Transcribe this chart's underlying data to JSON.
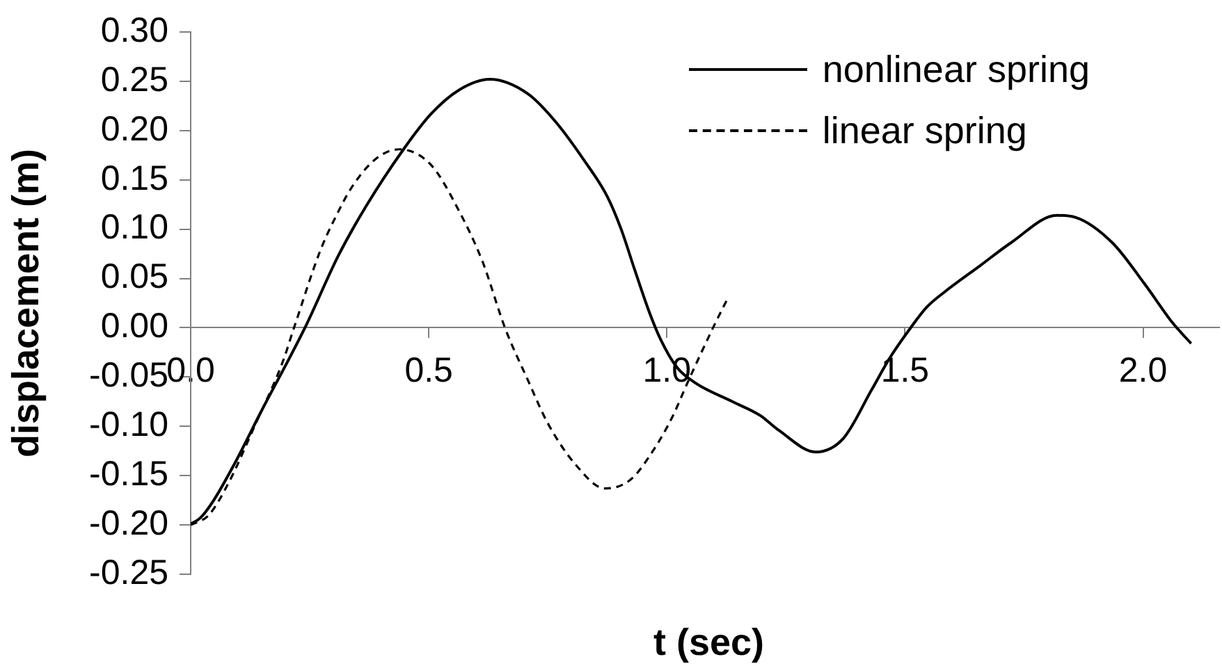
{
  "chart_data": {
    "type": "line",
    "xlabel": "t (sec)",
    "ylabel": "displacement (m)",
    "xlim": [
      0,
      2.16
    ],
    "xticks": [
      {
        "value": 0,
        "label": "0.0"
      },
      0.5,
      {
        "value": 1,
        "label": "1.0"
      },
      1.5,
      {
        "value": 2,
        "label": "2.0"
      }
    ],
    "ylim": [
      -0.25,
      0.3
    ],
    "yticks": [
      -0.25,
      {
        "value": -0.2,
        "label": "-0.20"
      },
      -0.15,
      {
        "value": -0.1,
        "label": "-0.10"
      },
      -0.05,
      {
        "value": 0,
        "label": "0.00"
      },
      0.05,
      {
        "value": 0.1,
        "label": "0.10"
      },
      0.15,
      {
        "value": 0.2,
        "label": "0.20"
      },
      0.25,
      {
        "value": 0.3,
        "label": "0.30"
      }
    ],
    "legend": "top right",
    "series": [
      {
        "name": "nonlinear spring",
        "color": "#000000",
        "line_style": "solid",
        "x": [
          0,
          0.02,
          0.047,
          0.092,
          0.148,
          0.24,
          0.31,
          0.368,
          0.447,
          0.505,
          0.563,
          0.628,
          0.709,
          0.768,
          0.826,
          0.875,
          0.904,
          0.933,
          0.963,
          0.987,
          1.021,
          1.06,
          1.138,
          1.196,
          1.235,
          1.313,
          1.371,
          1.43,
          1.469,
          1.512,
          1.546,
          1.585,
          1.658,
          1.722,
          1.819,
          1.858,
          1.936,
          2.004,
          2.062,
          2.101
        ],
        "values": [
          -0.199,
          -0.193,
          -0.176,
          -0.138,
          -0.085,
          0,
          0.073,
          0.123,
          0.181,
          0.217,
          0.241,
          0.252,
          0.237,
          0.208,
          0.17,
          0.133,
          0.1,
          0.058,
          0.016,
          -0.012,
          -0.04,
          -0.056,
          -0.075,
          -0.089,
          -0.104,
          -0.126,
          -0.112,
          -0.063,
          -0.03,
          0,
          0.021,
          0.037,
          0.063,
          0.086,
          0.114,
          0.112,
          0.086,
          0.044,
          0.005,
          -0.016
        ]
      },
      {
        "name": "linear spring",
        "color": "#000000",
        "line_style": "dashed",
        "x": [
          0,
          0.038,
          0.08,
          0.134,
          0.193,
          0.217,
          0.272,
          0.305,
          0.339,
          0.388,
          0.438,
          0.505,
          0.563,
          0.613,
          0.66,
          0.709,
          0.749,
          0.807,
          0.87,
          0.924,
          0.972,
          1.011,
          1.045,
          1.099,
          1.128
        ],
        "values": [
          -0.2,
          -0.19,
          -0.157,
          -0.1,
          -0.035,
          0,
          0.078,
          0.113,
          0.143,
          0.171,
          0.181,
          0.165,
          0.119,
          0.067,
          0,
          -0.054,
          -0.096,
          -0.138,
          -0.163,
          -0.154,
          -0.124,
          -0.091,
          -0.054,
          0.002,
          0.03
        ]
      }
    ]
  }
}
